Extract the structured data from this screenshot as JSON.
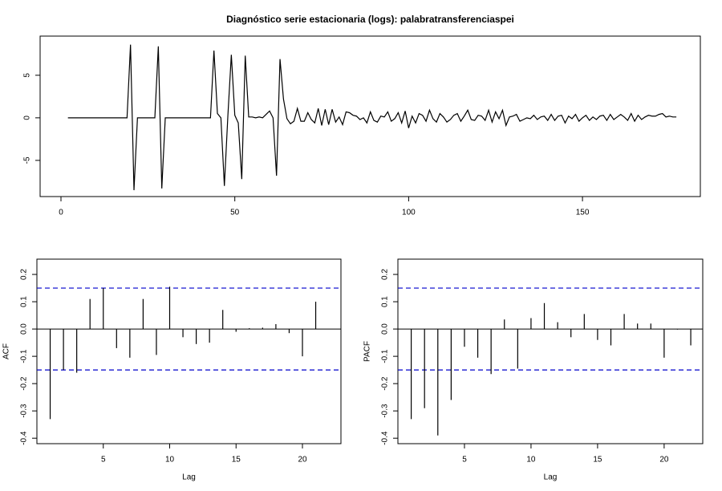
{
  "chart_data": [
    {
      "type": "line",
      "title": "Diagnóstico serie estacionaria (logs): palabratransferenciaspei",
      "color": "#000000",
      "x": [
        2,
        3,
        4,
        5,
        6,
        7,
        8,
        9,
        10,
        11,
        12,
        13,
        14,
        15,
        16,
        17,
        18,
        19,
        20,
        21,
        22,
        23,
        24,
        25,
        26,
        27,
        28,
        29,
        30,
        31,
        32,
        33,
        34,
        35,
        36,
        37,
        38,
        39,
        40,
        41,
        42,
        43,
        44,
        45,
        46,
        47,
        48,
        49,
        50,
        51,
        52,
        53,
        54,
        55,
        56,
        57,
        58,
        59,
        60,
        61,
        62,
        63,
        64,
        65,
        66,
        67,
        68,
        69,
        70,
        71,
        72,
        73,
        74,
        75,
        76,
        77,
        78,
        79,
        80,
        81,
        82,
        83,
        84,
        85,
        86,
        87,
        88,
        89,
        90,
        91,
        92,
        93,
        94,
        95,
        96,
        97,
        98,
        99,
        100,
        101,
        102,
        103,
        104,
        105,
        106,
        107,
        108,
        109,
        110,
        111,
        112,
        113,
        114,
        115,
        116,
        117,
        118,
        119,
        120,
        121,
        122,
        123,
        124,
        125,
        126,
        127,
        128,
        129,
        130,
        131,
        132,
        133,
        134,
        135,
        136,
        137,
        138,
        139,
        140,
        141,
        142,
        143,
        144,
        145,
        146,
        147,
        148,
        149,
        150,
        151,
        152,
        153,
        154,
        155,
        156,
        157,
        158,
        159,
        160,
        161,
        162,
        163,
        164,
        165,
        166,
        167,
        168,
        169,
        170,
        171,
        172,
        173,
        174,
        175,
        176,
        177
      ],
      "values": [
        0,
        0,
        0,
        0,
        0,
        0,
        0,
        0,
        0,
        0,
        0,
        0,
        0,
        0,
        0,
        0,
        0,
        0,
        8.6,
        -8.5,
        0,
        0,
        0,
        0,
        0,
        0,
        8.4,
        -8.3,
        0,
        0,
        0,
        0,
        0,
        0,
        0,
        0,
        0,
        0,
        0,
        0,
        0,
        0,
        7.9,
        0.5,
        0,
        -8.0,
        0.2,
        7.4,
        0.3,
        -0.6,
        -7.2,
        7.3,
        0.1,
        0.1,
        0,
        0.1,
        0,
        0.4,
        0.8,
        0,
        -6.8,
        6.9,
        2.2,
        -0.1,
        -0.7,
        -0.4,
        1.1,
        -0.4,
        -0.4,
        0.6,
        -0.2,
        -0.6,
        1.1,
        -0.9,
        1.0,
        -0.8,
        1.0,
        -0.5,
        0.1,
        -0.8,
        0.7,
        0.6,
        0.3,
        0.2,
        -0.2,
        0,
        -0.6,
        0.7,
        -0.3,
        -0.5,
        0.2,
        0.1,
        0.7,
        -0.4,
        -0.1,
        0.6,
        -0.6,
        0.8,
        -1.2,
        0.2,
        -0.6,
        0.5,
        0.3,
        -0.4,
        0.9,
        -0.1,
        -0.5,
        0.5,
        0.1,
        -0.5,
        -0.2,
        0.3,
        0.5,
        -0.4,
        0.2,
        0.9,
        -0.2,
        -0.3,
        0.3,
        0.2,
        -0.3,
        0.9,
        -0.5,
        0.7,
        -0.1,
        0.9,
        -0.9,
        0.1,
        0.2,
        0.4,
        -0.4,
        -0.2,
        0,
        -0.1,
        0.3,
        -0.2,
        0.1,
        0.2,
        -0.3,
        0.4,
        -0.3,
        0.2,
        0.3,
        -0.6,
        0.2,
        -0.1,
        0.4,
        -0.4,
        0,
        0.3,
        -0.3,
        0.1,
        -0.2,
        0.2,
        0.3,
        -0.3,
        0.4,
        -0.2,
        0.1,
        0.4,
        0.1,
        -0.3,
        0.5,
        -0.4,
        0.3,
        -0.2,
        0.1,
        0.3,
        0.2,
        0.2,
        0.4,
        0.5,
        0.1,
        0.2,
        0.1,
        0.1
      ],
      "xlim": [
        -6,
        183.9
      ],
      "ylim": [
        -9.25,
        9.6
      ],
      "xticks": [
        0,
        50,
        100,
        150
      ],
      "yticks": [
        -5,
        0,
        5
      ]
    },
    {
      "type": "stem",
      "xlabel": "Lag",
      "ylabel": "ACF",
      "color": "#000000",
      "conf_color": "#0000cc",
      "x": [
        1,
        2,
        3,
        4,
        5,
        6,
        7,
        8,
        9,
        10,
        11,
        12,
        13,
        14,
        15,
        16,
        17,
        18,
        19,
        20,
        21
      ],
      "values": [
        -0.33,
        -0.15,
        -0.16,
        0.11,
        0.15,
        -0.07,
        -0.105,
        0.11,
        -0.095,
        0.155,
        -0.03,
        -0.055,
        -0.05,
        0.07,
        -0.01,
        0.003,
        0.005,
        0.018,
        -0.015,
        -0.1,
        0.1
      ],
      "conf_limits": [
        0.15,
        -0.15
      ],
      "xlim": [
        0,
        22.9
      ],
      "ylim": [
        -0.42,
        0.256
      ],
      "xticks": [
        5,
        10,
        15,
        20
      ],
      "yticks": [
        -0.4,
        -0.3,
        -0.2,
        -0.1,
        {
          "value": 0,
          "label": "0.0"
        },
        0.1,
        0.2
      ]
    },
    {
      "type": "stem",
      "xlabel": "Lag",
      "ylabel": "PACF",
      "color": "#000000",
      "conf_color": "#0000cc",
      "x": [
        1,
        2,
        3,
        4,
        5,
        6,
        7,
        8,
        9,
        10,
        11,
        12,
        13,
        14,
        15,
        16,
        17,
        18,
        19,
        20,
        21,
        22
      ],
      "values": [
        -0.33,
        -0.29,
        -0.39,
        -0.26,
        -0.065,
        -0.105,
        -0.165,
        0.035,
        -0.145,
        0.04,
        0.095,
        0.025,
        -0.03,
        0.055,
        -0.04,
        -0.06,
        0.055,
        0.02,
        0.02,
        -0.105,
        -0.002,
        -0.06
      ],
      "conf_limits": [
        0.15,
        -0.15
      ],
      "xlim": [
        0,
        22.9
      ],
      "ylim": [
        -0.42,
        0.256
      ],
      "xticks": [
        5,
        10,
        15,
        20
      ],
      "yticks": [
        -0.4,
        -0.3,
        -0.2,
        -0.1,
        {
          "value": 0,
          "label": "0.0"
        },
        0.1,
        0.2
      ]
    }
  ]
}
